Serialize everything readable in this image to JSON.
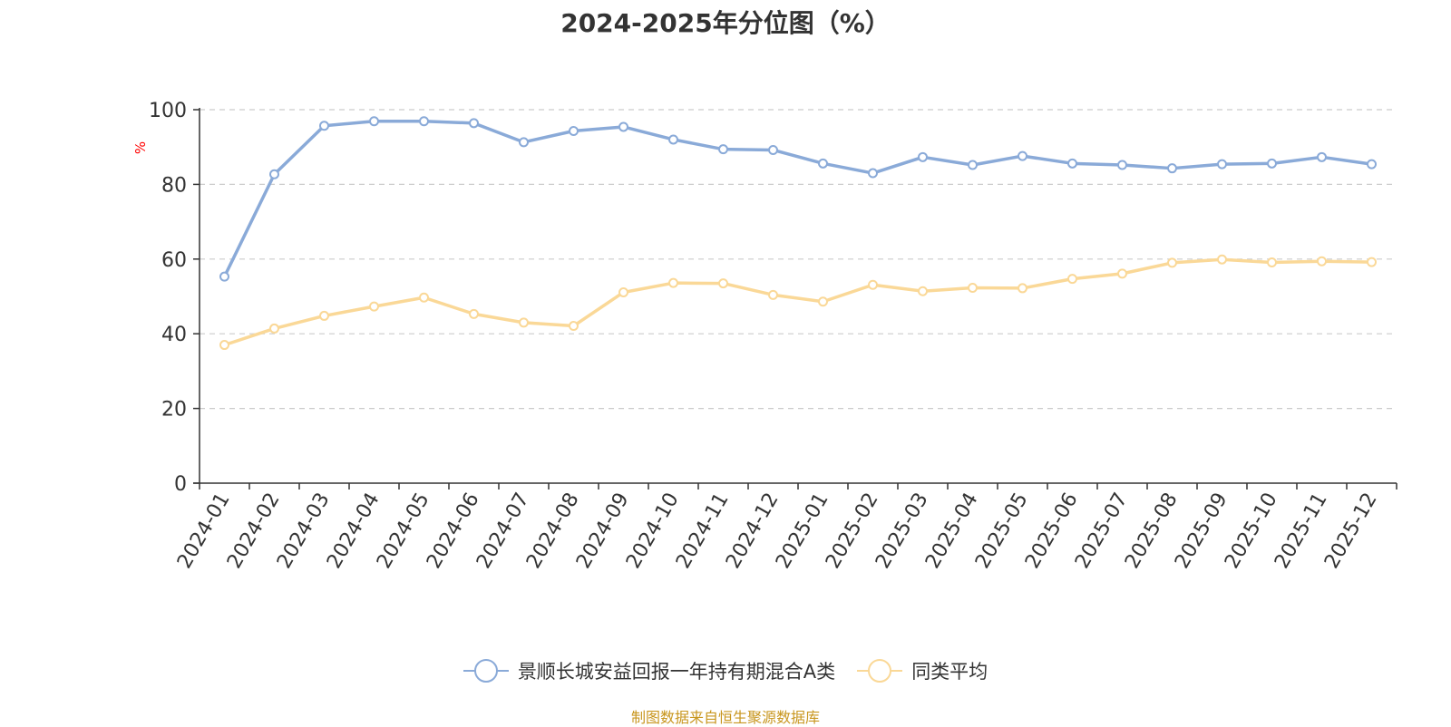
{
  "chart_data": {
    "type": "line",
    "title": "2024-2025年分位图（%）",
    "ylabel": "%",
    "xlabel": "",
    "ylim": [
      0,
      100
    ],
    "yticks": [
      0,
      20,
      40,
      60,
      80,
      100
    ],
    "grid": true,
    "legend_position": "bottom",
    "categories": [
      "2024-01",
      "2024-02",
      "2024-03",
      "2024-04",
      "2024-05",
      "2024-06",
      "2024-07",
      "2024-08",
      "2024-09",
      "2024-10",
      "2024-11",
      "2024-12",
      "2025-01",
      "2025-02",
      "2025-03",
      "2025-04",
      "2025-05",
      "2025-06",
      "2025-07",
      "2025-08",
      "2025-09",
      "2025-10",
      "2025-11",
      "2025-12"
    ],
    "series": [
      {
        "name": "景顺长城安益回报一年持有期混合A类",
        "color": "#8aaad8",
        "values": [
          55.3,
          82.7,
          95.7,
          96.9,
          96.9,
          96.4,
          91.3,
          94.3,
          95.4,
          92.0,
          89.4,
          89.2,
          85.6,
          83.0,
          87.3,
          85.2,
          87.6,
          85.6,
          85.2,
          84.3,
          85.4,
          85.6,
          87.3,
          85.4
        ]
      },
      {
        "name": "同类平均",
        "color": "#fad897",
        "values": [
          37.0,
          41.4,
          44.8,
          47.3,
          49.7,
          45.3,
          43.0,
          42.1,
          51.1,
          53.6,
          53.5,
          50.4,
          48.6,
          53.1,
          51.4,
          52.3,
          52.2,
          54.7,
          56.1,
          59.0,
          59.9,
          59.1,
          59.4,
          59.2
        ]
      }
    ]
  },
  "source_text": "制图数据来自恒生聚源数据库"
}
